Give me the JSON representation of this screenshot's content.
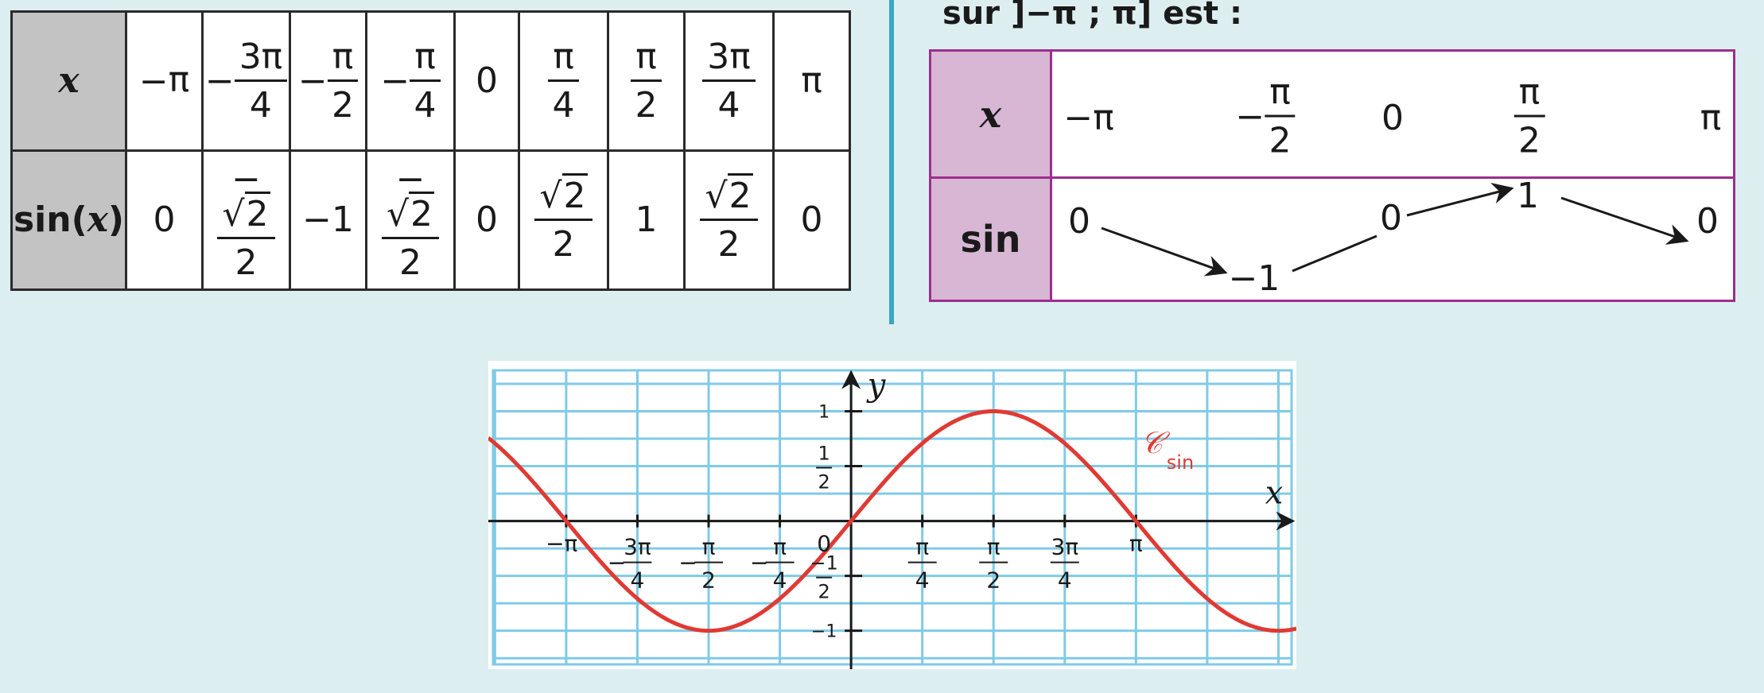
{
  "table1": {
    "row_x_label": "x",
    "row_sin_label_sin": "sin(",
    "row_sin_label_x": "x",
    "row_sin_label_close": ")",
    "x_values": [
      {
        "sign": "−",
        "num": "π",
        "den": ""
      },
      {
        "sign": "−",
        "num": "3π",
        "den": "4"
      },
      {
        "sign": "−",
        "num": "π",
        "den": "2"
      },
      {
        "sign": "−",
        "num": "π",
        "den": "4"
      },
      {
        "sign": "",
        "num": "0",
        "den": ""
      },
      {
        "sign": "",
        "num": "π",
        "den": "4"
      },
      {
        "sign": "",
        "num": "π",
        "den": "2"
      },
      {
        "sign": "",
        "num": "3π",
        "den": "4"
      },
      {
        "sign": "",
        "num": "π",
        "den": ""
      }
    ],
    "sin_values": [
      {
        "sign": "",
        "num": "0",
        "den": "",
        "root": ""
      },
      {
        "sign": "−",
        "num": "√",
        "den": "2",
        "root": "2"
      },
      {
        "sign": "",
        "num": "−1",
        "den": "",
        "root": ""
      },
      {
        "sign": "−",
        "num": "√",
        "den": "2",
        "root": "2"
      },
      {
        "sign": "",
        "num": "0",
        "den": "",
        "root": ""
      },
      {
        "sign": "",
        "num": "√",
        "den": "2",
        "root": "2"
      },
      {
        "sign": "",
        "num": "1",
        "den": "",
        "root": ""
      },
      {
        "sign": "",
        "num": "√",
        "den": "2",
        "root": "2"
      },
      {
        "sign": "",
        "num": "0",
        "den": "",
        "root": ""
      }
    ]
  },
  "variation": {
    "heading": "sur ]−π ; π] est :",
    "row_x_label": "x",
    "row_sin_label": "sin",
    "x_neg_pi": "−π",
    "x_neg_half_sign": "−",
    "x_neg_half_num": "π",
    "x_neg_half_den": "2",
    "x_zero": "0",
    "x_half_num": "π",
    "x_half_den": "2",
    "x_pi": "π",
    "v_start": "0",
    "v_min": "−1",
    "v_zero": "0",
    "v_max": "1",
    "v_end": "0"
  },
  "graph": {
    "axis_x_label": "x",
    "axis_y_label": "y",
    "curve_label_main": "𝒞",
    "curve_label_sub": "sin",
    "origin_label": "0",
    "y_tick_labels": [
      {
        "value": 1,
        "text": "1",
        "den": ""
      },
      {
        "value": 0.5,
        "text": "1",
        "den": "2"
      },
      {
        "value": -0.5,
        "text": "−1",
        "den": "2"
      },
      {
        "value": -1,
        "text": "−1",
        "den": ""
      }
    ],
    "x_tick_labels": [
      {
        "value": -3.14159,
        "sign": "−",
        "num": "π",
        "den": ""
      },
      {
        "value": -2.35619,
        "sign": "−",
        "num": "3π",
        "den": "4"
      },
      {
        "value": -1.5708,
        "sign": "−",
        "num": "π",
        "den": "2"
      },
      {
        "value": -0.7854,
        "sign": "−",
        "num": "π",
        "den": "4"
      },
      {
        "value": 0.7854,
        "sign": "",
        "num": "π",
        "den": "4"
      },
      {
        "value": 1.5708,
        "sign": "",
        "num": "π",
        "den": "2"
      },
      {
        "value": 2.35619,
        "sign": "",
        "num": "3π",
        "den": "4"
      },
      {
        "value": 3.14159,
        "sign": "",
        "num": "π",
        "den": ""
      }
    ],
    "colors": {
      "grid": "#7fcbe6",
      "curve": "#e03a33",
      "axis": "#1a1a1a"
    }
  },
  "chart_data": {
    "type": "line",
    "title": "",
    "xlabel": "x",
    "ylabel": "y",
    "xlim": [
      -4.0,
      4.91
    ],
    "ylim": [
      -1.35,
      1.46
    ],
    "grid": true,
    "series": [
      {
        "name": "𝒞sin",
        "x": [
          -4.0,
          -3.5,
          -3.14159,
          -2.5,
          -2.0,
          -1.5708,
          -1.0,
          -0.5,
          0,
          0.5,
          1.0,
          1.5708,
          2.0,
          2.5,
          3.14159,
          3.5,
          4.0,
          4.5,
          4.91
        ],
        "y": [
          0.757,
          0.351,
          0,
          -0.598,
          -0.909,
          -1,
          -0.841,
          -0.479,
          0,
          0.479,
          0.841,
          1,
          0.909,
          0.598,
          0,
          -0.351,
          -0.757,
          -0.978,
          -0.982
        ]
      }
    ]
  }
}
